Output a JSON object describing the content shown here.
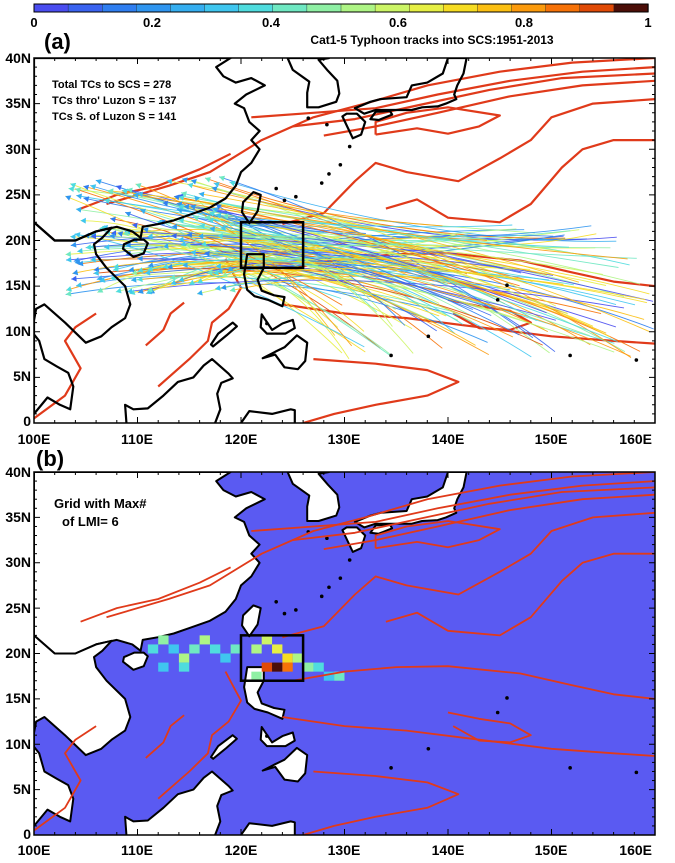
{
  "colorbar": {
    "ticks": [
      "0",
      "0.2",
      "0.4",
      "0.6",
      "0.8",
      "1"
    ],
    "colors": [
      "#4a4df0",
      "#3a63f0",
      "#2f7ef0",
      "#2f95ef",
      "#35aef0",
      "#3fc6ef",
      "#4fdcde",
      "#6fe8c2",
      "#8ff0a4",
      "#aef585",
      "#ccf566",
      "#e6ef44",
      "#f6dc22",
      "#fbbf12",
      "#fb9a0c",
      "#f67208",
      "#e04a06",
      "#4b0e08"
    ],
    "title": "Cat1-5 Typhoon tracks into SCS:1951-2013"
  },
  "panel_a": {
    "label": "(a)",
    "stats": [
      "Total TCs to SCS = 278",
      "TCs thro' Luzon S = 137",
      "TCs S. of Luzon S = 141"
    ]
  },
  "panel_b": {
    "label": "(b)",
    "note_line1": "Grid with Max#",
    "note_line2": "of LMI= 6"
  },
  "axes": {
    "lat_labels": [
      "40N",
      "35N",
      "30N",
      "25N",
      "20N",
      "15N",
      "10N",
      "5N",
      "0"
    ],
    "lon_labels": [
      "100E",
      "110E",
      "120E",
      "130E",
      "140E",
      "150E",
      "160E"
    ]
  },
  "colors": {
    "contour": "#e03a1a",
    "ocean_b": "#5a5af2",
    "box": "#000000"
  },
  "map": {
    "lon_range": [
      100,
      160
    ],
    "lat_range": [
      0,
      40
    ],
    "focus_box": {
      "lon": [
        120,
        126
      ],
      "lat": [
        17,
        22
      ]
    },
    "lmi_grid": [
      {
        "lon": 111,
        "lat": 20,
        "v": 0.35
      },
      {
        "lon": 112,
        "lat": 21,
        "v": 0.45
      },
      {
        "lon": 113,
        "lat": 20,
        "v": 0.3
      },
      {
        "lon": 114,
        "lat": 19,
        "v": 0.55
      },
      {
        "lon": 115,
        "lat": 20,
        "v": 0.4
      },
      {
        "lon": 116,
        "lat": 21,
        "v": 0.5
      },
      {
        "lon": 117,
        "lat": 20,
        "v": 0.35
      },
      {
        "lon": 118,
        "lat": 19,
        "v": 0.3
      },
      {
        "lon": 119,
        "lat": 20,
        "v": 0.4
      },
      {
        "lon": 121,
        "lat": 20,
        "v": 0.55
      },
      {
        "lon": 122,
        "lat": 21,
        "v": 0.6
      },
      {
        "lon": 123,
        "lat": 20,
        "v": 0.65
      },
      {
        "lon": 124,
        "lat": 19,
        "v": 0.7
      },
      {
        "lon": 122,
        "lat": 18,
        "v": 0.9
      },
      {
        "lon": 123,
        "lat": 18,
        "v": 1.0
      },
      {
        "lon": 124,
        "lat": 18,
        "v": 0.85
      },
      {
        "lon": 125,
        "lat": 19,
        "v": 0.5
      },
      {
        "lon": 126,
        "lat": 18,
        "v": 0.45
      },
      {
        "lon": 127,
        "lat": 18,
        "v": 0.35
      },
      {
        "lon": 128,
        "lat": 17,
        "v": 0.3
      },
      {
        "lon": 129,
        "lat": 17,
        "v": 0.4
      },
      {
        "lon": 121,
        "lat": 17,
        "v": 0.45
      },
      {
        "lon": 112,
        "lat": 18,
        "v": 0.3
      },
      {
        "lon": 114,
        "lat": 18,
        "v": 0.35
      }
    ]
  }
}
